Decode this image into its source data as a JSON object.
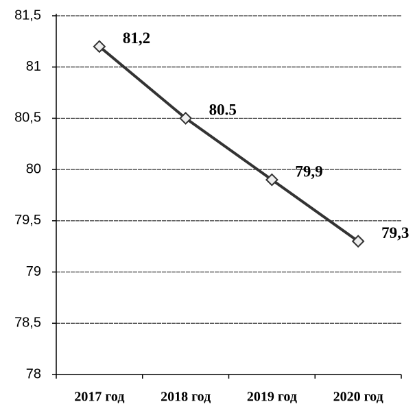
{
  "chart_data": {
    "type": "line",
    "categories": [
      "2017 год",
      "2018 год",
      "2019 год",
      "2020 год"
    ],
    "series": [
      {
        "color": "#333333",
        "values": [
          81.2,
          80.5,
          79.9,
          79.3
        ],
        "value_labels": [
          "81,2",
          "80.5",
          "79,9",
          "79,3"
        ]
      }
    ],
    "ylim": [
      78,
      81.5
    ],
    "yticks": [
      {
        "value": 78,
        "label": "78"
      },
      {
        "value": 78.5,
        "label": "78,5"
      },
      {
        "value": 79,
        "label": "79"
      },
      {
        "value": 79.5,
        "label": "79,5"
      },
      {
        "value": 80,
        "label": "80"
      },
      {
        "value": 80.5,
        "label": "80,5"
      },
      {
        "value": 81,
        "label": "81"
      },
      {
        "value": 81.5,
        "label": "81,5"
      }
    ],
    "grid": true
  }
}
